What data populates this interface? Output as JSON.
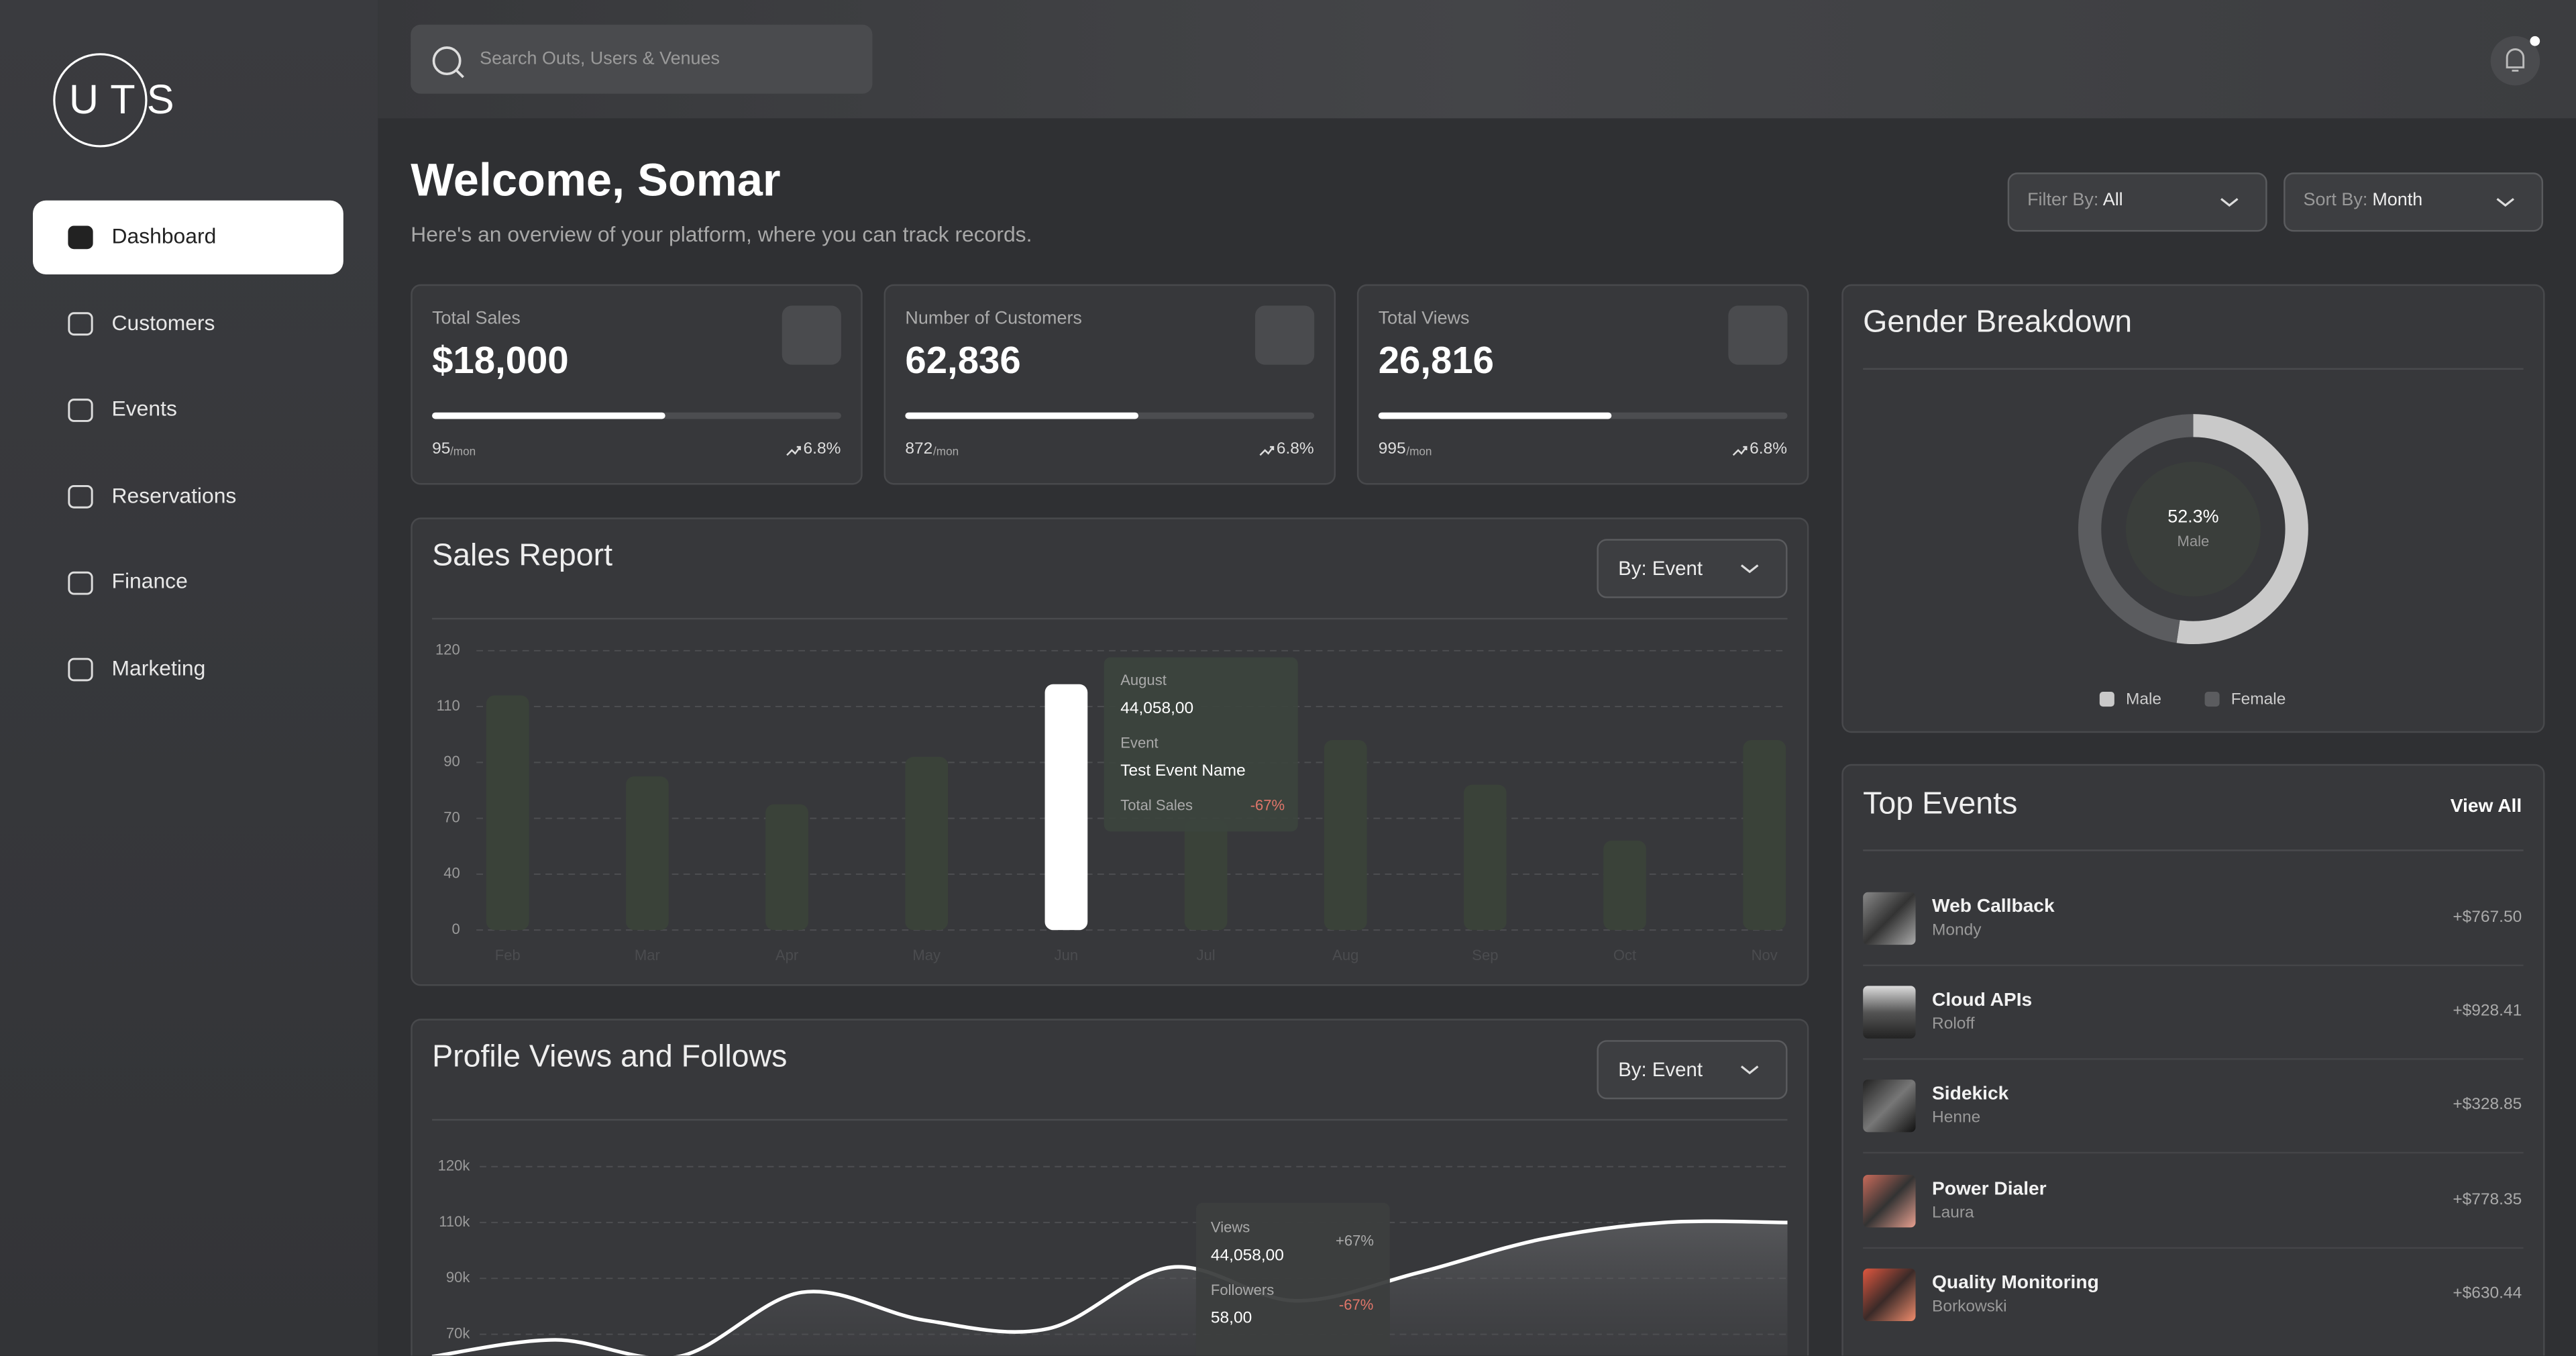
{
  "sidebar": {
    "logo": "UTS",
    "nav": [
      "Dashboard",
      "Customers",
      "Events",
      "Reservations",
      "Finance",
      "Marketing"
    ]
  },
  "header": {
    "search_placeholder": "Search Outs, Users & Venues"
  },
  "welcome": {
    "title": "Welcome, Somar",
    "subtitle": "Here's an overview of your platform, where you can track records."
  },
  "filters": [
    {
      "label": "Filter By:",
      "value": "All"
    },
    {
      "label": "Sort By:",
      "value": "Month"
    }
  ],
  "stats": [
    {
      "title": "Total Sales",
      "value": "$18,000",
      "progress": 57,
      "footer_value": "95",
      "footer_unit": "/mon",
      "change": "6.8%"
    },
    {
      "title": "Number of Customers",
      "value": "62,836",
      "progress": 57,
      "footer_value": "872",
      "footer_unit": "/mon",
      "change": "6.8%"
    },
    {
      "title": "Total Views",
      "value": "26,816",
      "progress": 57,
      "footer_value": "995",
      "footer_unit": "/mon",
      "change": "6.8%"
    }
  ],
  "chart_data": [
    {
      "type": "bar",
      "title": "Sales Report",
      "control": "By: Event",
      "categories": [
        "Feb",
        "Mar",
        "Apr",
        "May",
        "Jun",
        "Jul",
        "Aug",
        "Sep",
        "Oct",
        "Nov"
      ],
      "values": [
        112,
        85,
        75,
        92,
        114,
        69,
        98,
        82,
        58,
        98
      ],
      "bar_colors": [
        "#3a4239",
        "#3a4239",
        "#3a4239",
        "#3a4239",
        "#ffffff",
        "#3a4239",
        "#3a4239",
        "#3a4239",
        "#3a4239",
        "#3a4239"
      ],
      "ylim": [
        0,
        120
      ],
      "yticks": [
        0,
        40,
        70,
        90,
        110,
        120
      ],
      "grid": true,
      "tooltip": {
        "month": "August",
        "amount": "44,058,00",
        "event_label": "Event",
        "event_name": "Test Event Name",
        "sales_label": "Total Sales",
        "sales_change": "-67%"
      }
    },
    {
      "type": "line",
      "title": "Profile Views and Follows",
      "control": "By: Event",
      "categories": [
        null,
        null,
        null,
        null,
        null,
        null,
        null,
        null,
        null,
        null,
        null,
        null
      ],
      "series": [
        {
          "color": "#ffffff",
          "values": [
            62000,
            68000,
            62000,
            85000,
            75000,
            72000,
            94000,
            82000,
            92000,
            104000,
            110000,
            110000
          ]
        }
      ],
      "ylim": [
        60000,
        120000
      ],
      "yticks": [
        {
          "value": 70000,
          "label": "70k"
        },
        {
          "value": 90000,
          "label": "90k"
        },
        {
          "value": 110000,
          "label": "110k"
        },
        {
          "value": 120000,
          "label": "120k"
        }
      ],
      "grid": true,
      "tooltip": {
        "views_label": "Views",
        "views": "44,058,00",
        "views_change": "+67%",
        "followers_label": "Followers",
        "followers": "58,00",
        "followers_change": "-67%"
      }
    },
    {
      "type": "donut",
      "title": "Gender Breakdown",
      "categories": [
        "Male",
        "Female"
      ],
      "values": [
        52.3,
        47.7
      ],
      "value_labels": [
        "52.3%",
        null
      ],
      "colors": [
        "#c9c9c9",
        "#5b5c5f"
      ]
    }
  ],
  "top_events": {
    "title": "Top Events",
    "action": "View All",
    "items": [
      {
        "name": "Web Callback",
        "organizer": "Mondy",
        "amount": "+$767.50"
      },
      {
        "name": "Cloud APIs",
        "organizer": "Roloff",
        "amount": "+$928.41"
      },
      {
        "name": "Sidekick",
        "organizer": "Henne",
        "amount": "+$328.85"
      },
      {
        "name": "Power Dialer",
        "organizer": "Laura",
        "amount": "+$778.35"
      },
      {
        "name": "Quality Monitoring",
        "organizer": "Borkowski",
        "amount": "+$630.44"
      }
    ]
  }
}
